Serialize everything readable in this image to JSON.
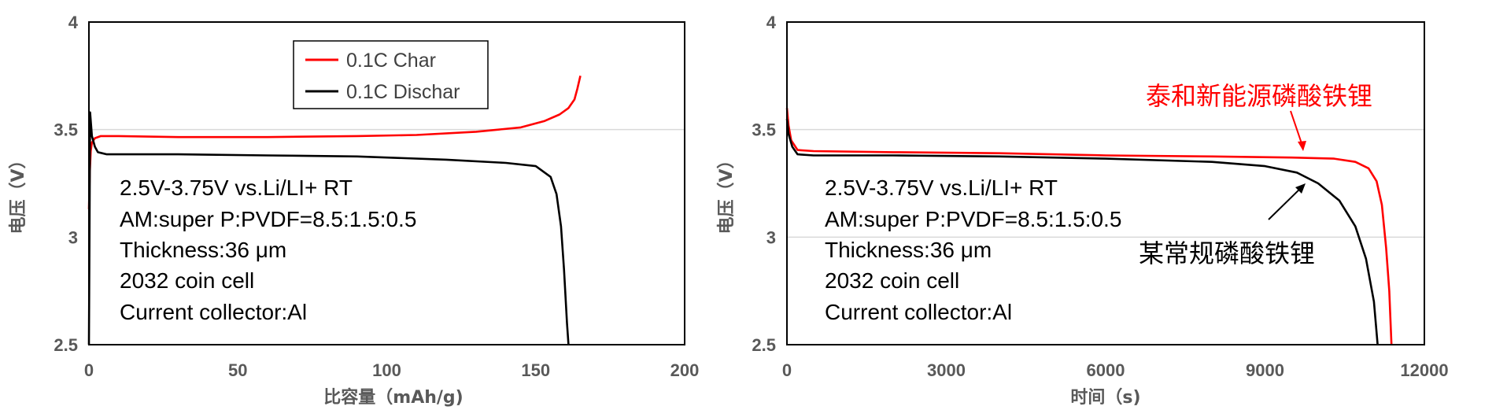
{
  "colors": {
    "charge": "#ff0000",
    "discharge": "#000000",
    "grid": "#d9d9d9",
    "axis": "#595959"
  },
  "chart_data": [
    {
      "type": "line",
      "title": "",
      "xlabel": "比容量（mAh/g)",
      "ylabel": "电压（V）",
      "xlim": [
        0,
        200
      ],
      "ylim": [
        2.5,
        4
      ],
      "xticks": [
        "0",
        "50",
        "100",
        "150",
        "200"
      ],
      "yticks": [
        "2.5",
        "3",
        "3.5",
        "4"
      ],
      "grid": "horizontal at 3.5",
      "legend_position": "top-center",
      "series": [
        {
          "name": "0.1C Char",
          "color": "#ff0000",
          "points": [
            [
              0,
              3.13
            ],
            [
              0.3,
              3.3
            ],
            [
              0.6,
              3.4
            ],
            [
              1,
              3.44
            ],
            [
              2,
              3.46
            ],
            [
              4,
              3.47
            ],
            [
              10,
              3.47
            ],
            [
              30,
              3.465
            ],
            [
              60,
              3.465
            ],
            [
              90,
              3.47
            ],
            [
              110,
              3.475
            ],
            [
              130,
              3.49
            ],
            [
              145,
              3.51
            ],
            [
              153,
              3.54
            ],
            [
              158,
              3.57
            ],
            [
              161,
              3.6
            ],
            [
              163,
              3.64
            ],
            [
              164,
              3.69
            ],
            [
              165,
              3.75
            ]
          ]
        },
        {
          "name": "0.1C Dischar",
          "color": "#000000",
          "points": [
            [
              0,
              2.5
            ],
            [
              0.4,
              3.58
            ],
            [
              1,
              3.47
            ],
            [
              2,
              3.42
            ],
            [
              3,
              3.395
            ],
            [
              6,
              3.385
            ],
            [
              30,
              3.385
            ],
            [
              60,
              3.38
            ],
            [
              90,
              3.375
            ],
            [
              120,
              3.36
            ],
            [
              140,
              3.345
            ],
            [
              150,
              3.33
            ],
            [
              155,
              3.28
            ],
            [
              157,
              3.2
            ],
            [
              158.5,
              3.05
            ],
            [
              159.5,
              2.85
            ],
            [
              160.5,
              2.6
            ],
            [
              161,
              2.5
            ]
          ]
        }
      ],
      "annotations": [
        "2.5V-3.75V vs.Li/LI+ RT",
        "AM:super P:PVDF=8.5:1.5:0.5",
        "Thickness:36 μm",
        "2032 coin cell",
        "Current collector:Al"
      ]
    },
    {
      "type": "line",
      "title": "",
      "xlabel": "时间（s)",
      "ylabel": "电压（V）",
      "xlim": [
        0,
        12000
      ],
      "ylim": [
        2.5,
        4
      ],
      "xticks": [
        "0",
        "3000",
        "6000",
        "9000",
        "12000"
      ],
      "yticks": [
        "2.5",
        "3",
        "3.5",
        "4"
      ],
      "grid": "horizontal at 3 and 3.5",
      "series": [
        {
          "name": "泰和新能源磷酸铁锂",
          "color": "#ff0000",
          "points": [
            [
              0,
              3.6
            ],
            [
              30,
              3.52
            ],
            [
              80,
              3.45
            ],
            [
              200,
              3.405
            ],
            [
              500,
              3.4
            ],
            [
              2000,
              3.395
            ],
            [
              4000,
              3.39
            ],
            [
              6000,
              3.38
            ],
            [
              8000,
              3.375
            ],
            [
              9500,
              3.37
            ],
            [
              10300,
              3.365
            ],
            [
              10700,
              3.35
            ],
            [
              10950,
              3.32
            ],
            [
              11100,
              3.26
            ],
            [
              11200,
              3.15
            ],
            [
              11280,
              2.95
            ],
            [
              11340,
              2.75
            ],
            [
              11380,
              2.5
            ]
          ]
        },
        {
          "name": "某常规磷酸铁锂",
          "color": "#000000",
          "points": [
            [
              0,
              3.55
            ],
            [
              30,
              3.48
            ],
            [
              100,
              3.42
            ],
            [
              200,
              3.385
            ],
            [
              500,
              3.38
            ],
            [
              2000,
              3.38
            ],
            [
              4000,
              3.375
            ],
            [
              6000,
              3.365
            ],
            [
              8000,
              3.35
            ],
            [
              9000,
              3.33
            ],
            [
              9600,
              3.3
            ],
            [
              10000,
              3.25
            ],
            [
              10400,
              3.17
            ],
            [
              10700,
              3.05
            ],
            [
              10900,
              2.9
            ],
            [
              11050,
              2.7
            ],
            [
              11120,
              2.5
            ]
          ]
        }
      ],
      "annotations": [
        "2.5V-3.75V vs.Li/LI+ RT",
        "AM:super P:PVDF=8.5:1.5:0.5",
        "Thickness:36 μm",
        "2032 coin cell",
        "Current collector:Al"
      ],
      "callouts": {
        "red": "泰和新能源磷酸铁锂",
        "black": "某常规磷酸铁锂"
      }
    }
  ]
}
